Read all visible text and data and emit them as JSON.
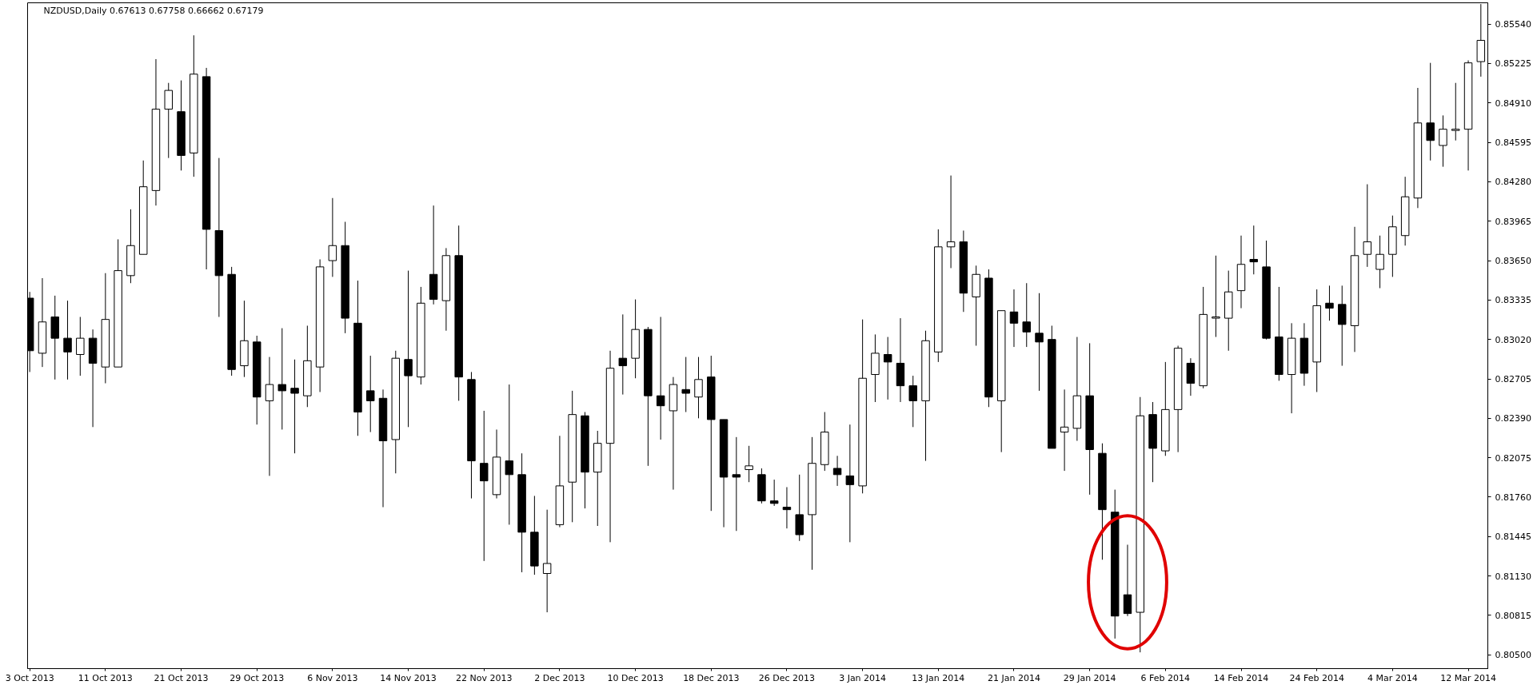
{
  "chart_data": {
    "type": "candlestick",
    "title": "NZDUSD,Daily  0.67613 0.67758 0.66662 0.67179",
    "categories": [
      "3 Oct 2013",
      null,
      null,
      null,
      null,
      null,
      "11 Oct 2013",
      null,
      null,
      null,
      null,
      null,
      "21 Oct 2013",
      null,
      null,
      null,
      null,
      null,
      "29 Oct 2013",
      null,
      null,
      null,
      null,
      null,
      "6 Nov 2013",
      null,
      null,
      null,
      null,
      null,
      "14 Nov 2013",
      null,
      null,
      null,
      null,
      null,
      "22 Nov 2013",
      null,
      null,
      null,
      null,
      null,
      "2 Dec 2013",
      null,
      null,
      null,
      null,
      null,
      "10 Dec 2013",
      null,
      null,
      null,
      null,
      null,
      "18 Dec 2013",
      null,
      null,
      null,
      null,
      null,
      "26 Dec 2013",
      null,
      null,
      null,
      null,
      null,
      "3 Jan 2014",
      null,
      null,
      null,
      null,
      null,
      "13 Jan 2014",
      null,
      null,
      null,
      null,
      null,
      "21 Jan 2014",
      null,
      null,
      null,
      null,
      null,
      "29 Jan 2014",
      null,
      null,
      null,
      null,
      null,
      "6 Feb 2014",
      null,
      null,
      null,
      null,
      null,
      "14 Feb 2014",
      null,
      null,
      null,
      null,
      null,
      "24 Feb 2014",
      null,
      null,
      null,
      null,
      null,
      "4 Mar 2014",
      null,
      null,
      null,
      null,
      null,
      "12 Mar 2014",
      null
    ],
    "ohlc": [
      [
        0.8335,
        0.834,
        0.8276,
        0.8293
      ],
      [
        0.8291,
        0.8351,
        0.828,
        0.8316
      ],
      [
        0.832,
        0.8337,
        0.827,
        0.8303
      ],
      [
        0.8303,
        0.8333,
        0.827,
        0.8292
      ],
      [
        0.829,
        0.832,
        0.8273,
        0.8303
      ],
      [
        0.8303,
        0.831,
        0.8232,
        0.8283
      ],
      [
        0.828,
        0.8355,
        0.8267,
        0.8318
      ],
      [
        0.828,
        0.8382,
        0.828,
        0.8357
      ],
      [
        0.8353,
        0.8406,
        0.8347,
        0.8377
      ],
      [
        0.837,
        0.8445,
        0.837,
        0.8424
      ],
      [
        0.8421,
        0.8526,
        0.8409,
        0.8486
      ],
      [
        0.8486,
        0.8507,
        0.8447,
        0.8501
      ],
      [
        0.8484,
        0.8509,
        0.8437,
        0.8449
      ],
      [
        0.8451,
        0.8545,
        0.8432,
        0.8514
      ],
      [
        0.8512,
        0.8519,
        0.8358,
        0.839
      ],
      [
        0.8389,
        0.8447,
        0.832,
        0.8353
      ],
      [
        0.8354,
        0.836,
        0.8273,
        0.8278
      ],
      [
        0.8281,
        0.8333,
        0.8272,
        0.8301
      ],
      [
        0.83,
        0.8305,
        0.8234,
        0.8256
      ],
      [
        0.8253,
        0.8288,
        0.8193,
        0.8266
      ],
      [
        0.8266,
        0.8311,
        0.823,
        0.8261
      ],
      [
        0.8263,
        0.8286,
        0.8211,
        0.8259
      ],
      [
        0.8257,
        0.8313,
        0.8248,
        0.8285
      ],
      [
        0.828,
        0.8366,
        0.826,
        0.836
      ],
      [
        0.8365,
        0.8415,
        0.8352,
        0.8377
      ],
      [
        0.8377,
        0.8396,
        0.8307,
        0.8319
      ],
      [
        0.8315,
        0.8349,
        0.8225,
        0.8244
      ],
      [
        0.8261,
        0.8289,
        0.8228,
        0.8253
      ],
      [
        0.8255,
        0.8262,
        0.8168,
        0.8221
      ],
      [
        0.8222,
        0.8293,
        0.8195,
        0.8287
      ],
      [
        0.8286,
        0.8357,
        0.8232,
        0.8273
      ],
      [
        0.8272,
        0.8344,
        0.8266,
        0.8331
      ],
      [
        0.8354,
        0.8409,
        0.833,
        0.8334
      ],
      [
        0.8333,
        0.8375,
        0.8309,
        0.8369
      ],
      [
        0.8369,
        0.8393,
        0.8253,
        0.8272
      ],
      [
        0.827,
        0.8276,
        0.8175,
        0.8205
      ],
      [
        0.8203,
        0.8245,
        0.8125,
        0.8189
      ],
      [
        0.8178,
        0.823,
        0.8175,
        0.8208
      ],
      [
        0.8205,
        0.8266,
        0.8154,
        0.8194
      ],
      [
        0.8194,
        0.8211,
        0.8116,
        0.8148
      ],
      [
        0.8148,
        0.8177,
        0.8114,
        0.8121
      ],
      [
        0.8115,
        0.8166,
        0.8084,
        0.8123
      ],
      [
        0.8154,
        0.8225,
        0.8152,
        0.8185
      ],
      [
        0.8188,
        0.8261,
        0.8156,
        0.8242
      ],
      [
        0.8241,
        0.8244,
        0.8167,
        0.8196
      ],
      [
        0.8196,
        0.8229,
        0.8153,
        0.8219
      ],
      [
        0.8219,
        0.8293,
        0.814,
        0.8279
      ],
      [
        0.8287,
        0.8322,
        0.8258,
        0.8281
      ],
      [
        0.8287,
        0.8334,
        0.8271,
        0.831
      ],
      [
        0.831,
        0.8312,
        0.8201,
        0.8257
      ],
      [
        0.8257,
        0.832,
        0.8222,
        0.8249
      ],
      [
        0.8245,
        0.8272,
        0.8182,
        0.8266
      ],
      [
        0.8262,
        0.8288,
        0.8244,
        0.8259
      ],
      [
        0.8256,
        0.8288,
        0.8239,
        0.827
      ],
      [
        0.8272,
        0.8289,
        0.8165,
        0.8238
      ],
      [
        0.8238,
        0.8238,
        0.8152,
        0.8192
      ],
      [
        0.8194,
        0.8224,
        0.8149,
        0.8192
      ],
      [
        0.8198,
        0.8217,
        0.8188,
        0.8201
      ],
      [
        0.8194,
        0.8199,
        0.8171,
        0.8173
      ],
      [
        0.8173,
        0.819,
        0.8169,
        0.8171
      ],
      [
        0.8168,
        0.8184,
        0.8151,
        0.8166
      ],
      [
        0.8162,
        0.8194,
        0.8141,
        0.8146
      ],
      [
        0.8162,
        0.8224,
        0.8118,
        0.8203
      ],
      [
        0.8202,
        0.8244,
        0.8197,
        0.8228
      ],
      [
        0.8199,
        0.8209,
        0.8185,
        0.8194
      ],
      [
        0.8193,
        0.8234,
        0.814,
        0.8186
      ],
      [
        0.8185,
        0.8318,
        0.8179,
        0.8271
      ],
      [
        0.8274,
        0.8306,
        0.8252,
        0.8291
      ],
      [
        0.829,
        0.8304,
        0.8254,
        0.8284
      ],
      [
        0.8283,
        0.8319,
        0.8252,
        0.8265
      ],
      [
        0.8265,
        0.8273,
        0.8232,
        0.8253
      ],
      [
        0.8253,
        0.8309,
        0.8205,
        0.8301
      ],
      [
        0.8292,
        0.839,
        0.8284,
        0.8376
      ],
      [
        0.8376,
        0.8433,
        0.8359,
        0.838
      ],
      [
        0.838,
        0.8389,
        0.8324,
        0.8339
      ],
      [
        0.8336,
        0.8361,
        0.8297,
        0.8354
      ],
      [
        0.8351,
        0.8358,
        0.8248,
        0.8256
      ],
      [
        0.8253,
        0.8325,
        0.8212,
        0.8325
      ],
      [
        0.8324,
        0.8342,
        0.8296,
        0.8315
      ],
      [
        0.8316,
        0.8347,
        0.8296,
        0.8308
      ],
      [
        0.8307,
        0.8339,
        0.8261,
        0.83
      ],
      [
        0.8302,
        0.8313,
        0.8215,
        0.8215
      ],
      [
        0.8228,
        0.8262,
        0.8197,
        0.8232
      ],
      [
        0.8231,
        0.8304,
        0.8221,
        0.8257
      ],
      [
        0.8257,
        0.8299,
        0.8178,
        0.8214
      ],
      [
        0.8211,
        0.8219,
        0.8126,
        0.8166
      ],
      [
        0.8164,
        0.8182,
        0.8063,
        0.8081
      ],
      [
        0.8098,
        0.8138,
        0.8081,
        0.8083
      ],
      [
        0.8084,
        0.8256,
        0.8052,
        0.8241
      ],
      [
        0.8242,
        0.8252,
        0.8188,
        0.8215
      ],
      [
        0.8213,
        0.8284,
        0.8209,
        0.8246
      ],
      [
        0.8246,
        0.8297,
        0.8212,
        0.8295
      ],
      [
        0.8283,
        0.8287,
        0.8257,
        0.8267
      ],
      [
        0.8265,
        0.8344,
        0.8263,
        0.8322
      ],
      [
        0.8319,
        0.8369,
        0.8304,
        0.832
      ],
      [
        0.8319,
        0.8357,
        0.8293,
        0.834
      ],
      [
        0.8341,
        0.8385,
        0.8327,
        0.8362
      ],
      [
        0.8366,
        0.8393,
        0.8354,
        0.8364
      ],
      [
        0.836,
        0.8381,
        0.8302,
        0.8303
      ],
      [
        0.8304,
        0.8344,
        0.8269,
        0.8274
      ],
      [
        0.8274,
        0.8315,
        0.8243,
        0.8303
      ],
      [
        0.8303,
        0.8315,
        0.8265,
        0.8275
      ],
      [
        0.8284,
        0.8342,
        0.826,
        0.8329
      ],
      [
        0.8331,
        0.8345,
        0.8317,
        0.8327
      ],
      [
        0.833,
        0.8345,
        0.8281,
        0.8314
      ],
      [
        0.8313,
        0.8392,
        0.8292,
        0.8369
      ],
      [
        0.837,
        0.8426,
        0.836,
        0.838
      ],
      [
        0.8358,
        0.8385,
        0.8343,
        0.837
      ],
      [
        0.837,
        0.8401,
        0.8352,
        0.8392
      ],
      [
        0.8385,
        0.8432,
        0.8377,
        0.8416
      ],
      [
        0.8415,
        0.8503,
        0.8407,
        0.8475
      ],
      [
        0.8475,
        0.8523,
        0.8445,
        0.8461
      ],
      [
        0.8457,
        0.8481,
        0.844,
        0.847
      ],
      [
        0.8469,
        0.8507,
        0.8461,
        0.847
      ],
      [
        0.847,
        0.8525,
        0.8437,
        0.8523
      ],
      [
        0.8524,
        0.857,
        0.8512,
        0.8541
      ]
    ],
    "color": "#000000",
    "colors": [
      "#000000",
      "#ffffff",
      "#000000",
      "#000000",
      "#ffffff",
      "#000000",
      "#ffffff",
      "#ffffff",
      "#ffffff",
      "#ffffff",
      "#ffffff",
      "#ffffff",
      "#000000",
      "#ffffff",
      "#000000",
      "#000000",
      "#000000",
      "#ffffff",
      "#000000",
      "#ffffff",
      "#000000",
      "#000000",
      "#ffffff",
      "#ffffff",
      "#ffffff",
      "#000000",
      "#000000",
      "#000000",
      "#000000",
      "#ffffff",
      "#000000",
      "#ffffff",
      "#000000",
      "#ffffff",
      "#000000",
      "#000000",
      "#000000",
      "#ffffff",
      "#000000",
      "#000000",
      "#000000",
      "#ffffff",
      "#ffffff",
      "#ffffff",
      "#000000",
      "#ffffff",
      "#ffffff",
      "#000000",
      "#ffffff",
      "#000000",
      "#000000",
      "#ffffff",
      "#000000",
      "#ffffff",
      "#000000",
      "#000000",
      "#000000",
      "#ffffff",
      "#000000",
      "#000000",
      "#000000",
      "#000000",
      "#ffffff",
      "#ffffff",
      "#000000",
      "#000000",
      "#ffffff",
      "#ffffff",
      "#000000",
      "#000000",
      "#000000",
      "#ffffff",
      "#ffffff",
      "#ffffff",
      "#000000",
      "#ffffff",
      "#000000",
      "#ffffff",
      "#000000",
      "#000000",
      "#000000",
      "#000000",
      "#ffffff",
      "#ffffff",
      "#000000",
      "#000000",
      "#000000",
      "#000000",
      "#ffffff",
      "#000000",
      "#ffffff",
      "#ffffff",
      "#000000",
      "#ffffff",
      "#ffffff",
      "#ffffff",
      "#ffffff",
      "#000000",
      "#000000",
      "#000000",
      "#ffffff",
      "#000000",
      "#ffffff",
      "#000000",
      "#000000",
      "#ffffff",
      "#ffffff",
      "#ffffff",
      "#ffffff",
      "#ffffff",
      "#ffffff",
      "#000000",
      "#ffffff",
      "#ffffff",
      "#ffffff",
      "#ffffff"
    ],
    "ylim": [
      0.8039,
      0.8571
    ],
    "yticks": [
      {
        "value": 0.8554,
        "label": "0.85540"
      },
      {
        "value": 0.85225,
        "label": "0.85225"
      },
      {
        "value": 0.8491,
        "label": "0.84910"
      },
      {
        "value": 0.84595,
        "label": "0.84595"
      },
      {
        "value": 0.8428,
        "label": "0.84280"
      },
      {
        "value": 0.83965,
        "label": "0.83965"
      },
      {
        "value": 0.8365,
        "label": "0.83650"
      },
      {
        "value": 0.83335,
        "label": "0.83335"
      },
      {
        "value": 0.8302,
        "label": "0.83020"
      },
      {
        "value": 0.82705,
        "label": "0.82705"
      },
      {
        "value": 0.8239,
        "label": "0.82390"
      },
      {
        "value": 0.82075,
        "label": "0.82075"
      },
      {
        "value": 0.8176,
        "label": "0.81760"
      },
      {
        "value": 0.81445,
        "label": "0.81445"
      },
      {
        "value": 0.8113,
        "label": "0.81130"
      },
      {
        "value": 0.80815,
        "label": "0.80815"
      },
      {
        "value": 0.805,
        "label": "0.80500"
      }
    ]
  }
}
